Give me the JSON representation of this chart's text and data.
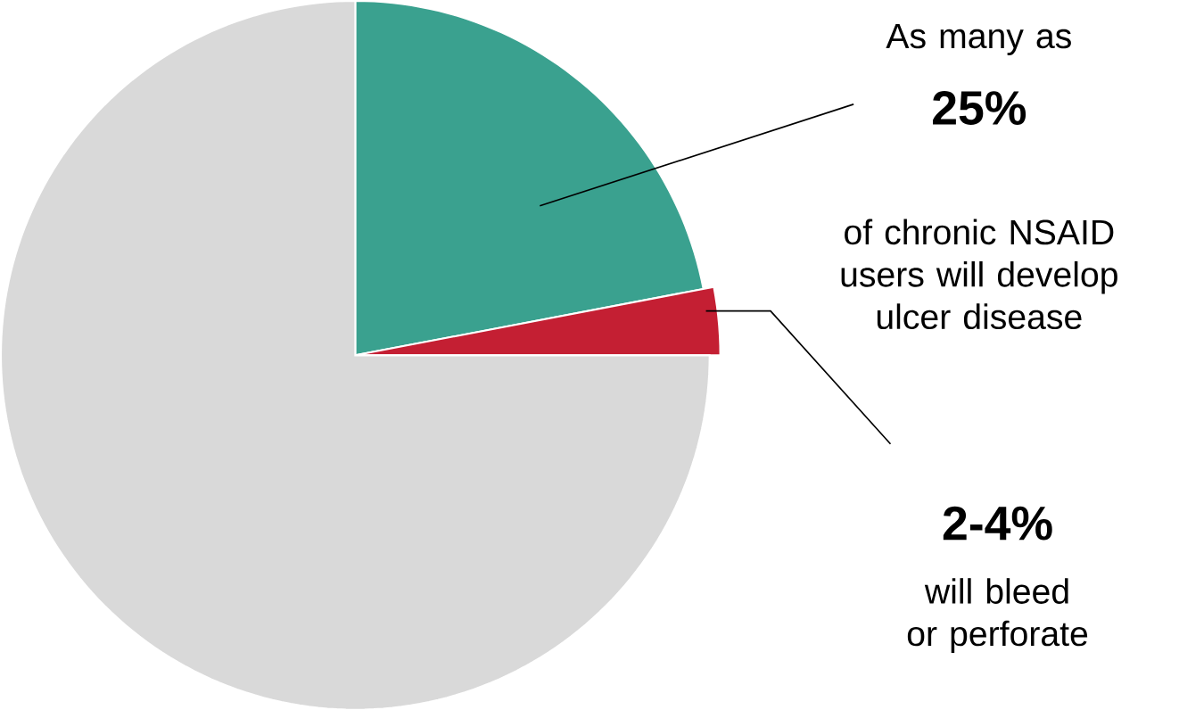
{
  "chart_data": {
    "type": "pie",
    "categories": [
      null,
      null,
      null
    ],
    "values": [
      22,
      3,
      75
    ],
    "colors": [
      "#3aa18f",
      "#c41f33",
      "#d9d9d9"
    ],
    "annotations": [
      "As many as",
      "25%",
      "of chronic NSAID users will develop ulcer disease",
      "2-4%",
      "will bleed or perforate"
    ]
  }
}
